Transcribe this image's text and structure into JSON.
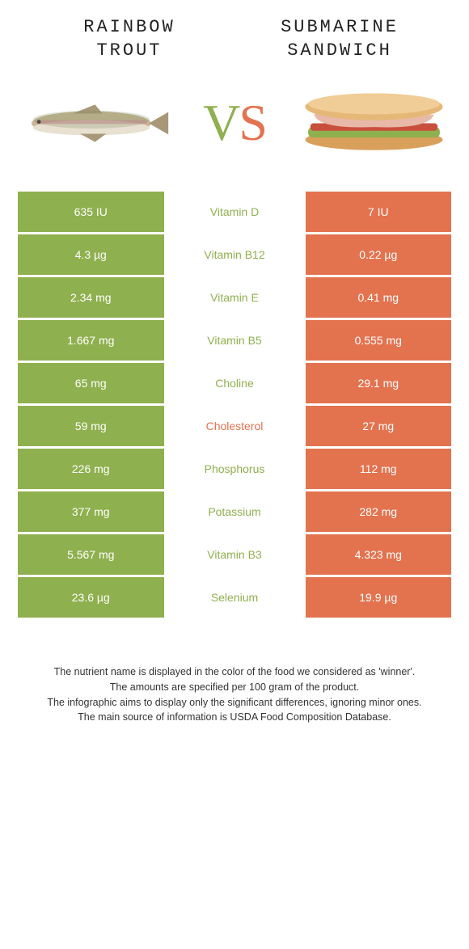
{
  "colors": {
    "left_bg": "#8fb04e",
    "right_bg": "#e3734f",
    "left_text": "#8fb04e",
    "right_text": "#e3734f",
    "vs_left": "#8fb04e",
    "vs_right": "#e3734f"
  },
  "header": {
    "left_line1": "Rainbow",
    "left_line2": "trout",
    "right_line1": "Submarine",
    "right_line2": "sandwich"
  },
  "vs": {
    "v": "V",
    "s": "S"
  },
  "rows": [
    {
      "left": "635 IU",
      "label": "Vitamin D",
      "right": "7 IU",
      "winner": "left"
    },
    {
      "left": "4.3 µg",
      "label": "Vitamin B12",
      "right": "0.22 µg",
      "winner": "left"
    },
    {
      "left": "2.34 mg",
      "label": "Vitamin E",
      "right": "0.41 mg",
      "winner": "left"
    },
    {
      "left": "1.667 mg",
      "label": "Vitamin B5",
      "right": "0.555 mg",
      "winner": "left"
    },
    {
      "left": "65 mg",
      "label": "Choline",
      "right": "29.1 mg",
      "winner": "left"
    },
    {
      "left": "59 mg",
      "label": "Cholesterol",
      "right": "27 mg",
      "winner": "right"
    },
    {
      "left": "226 mg",
      "label": "Phosphorus",
      "right": "112 mg",
      "winner": "left"
    },
    {
      "left": "377 mg",
      "label": "Potassium",
      "right": "282 mg",
      "winner": "left"
    },
    {
      "left": "5.567 mg",
      "label": "Vitamin B3",
      "right": "4.323 mg",
      "winner": "left"
    },
    {
      "left": "23.6 µg",
      "label": "Selenium",
      "right": "19.9 µg",
      "winner": "left"
    }
  ],
  "footer": {
    "line1": "The nutrient name is displayed in the color of the food we considered as 'winner'.",
    "line2": "The amounts are specified per 100 gram of the product.",
    "line3": "The infographic aims to display only the significant differences, ignoring minor ones.",
    "line4": "The main source of information is USDA Food Composition Database."
  }
}
